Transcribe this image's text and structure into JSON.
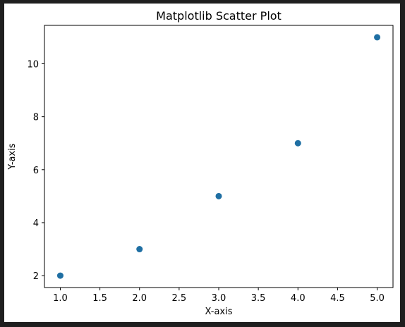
{
  "colors": {
    "background": "#1f1f1f",
    "figure": "#ffffff",
    "marker": "#1f6fa3"
  },
  "chart_data": {
    "type": "scatter",
    "title": "Matplotlib Scatter Plot",
    "xlabel": "X-axis",
    "ylabel": "Y-axis",
    "x": [
      1,
      2,
      3,
      4,
      5
    ],
    "y": [
      2,
      3,
      5,
      7,
      11
    ],
    "xlim": [
      0.8,
      5.2
    ],
    "ylim": [
      1.55,
      11.45
    ],
    "xticks": [
      1.0,
      1.5,
      2.0,
      2.5,
      3.0,
      3.5,
      4.0,
      4.5,
      5.0
    ],
    "xtick_labels": [
      "1.0",
      "1.5",
      "2.0",
      "2.5",
      "3.0",
      "3.5",
      "4.0",
      "4.5",
      "5.0"
    ],
    "yticks": [
      2,
      4,
      6,
      8,
      10
    ],
    "ytick_labels": [
      "2",
      "4",
      "6",
      "8",
      "10"
    ],
    "grid": false,
    "legend": false
  }
}
